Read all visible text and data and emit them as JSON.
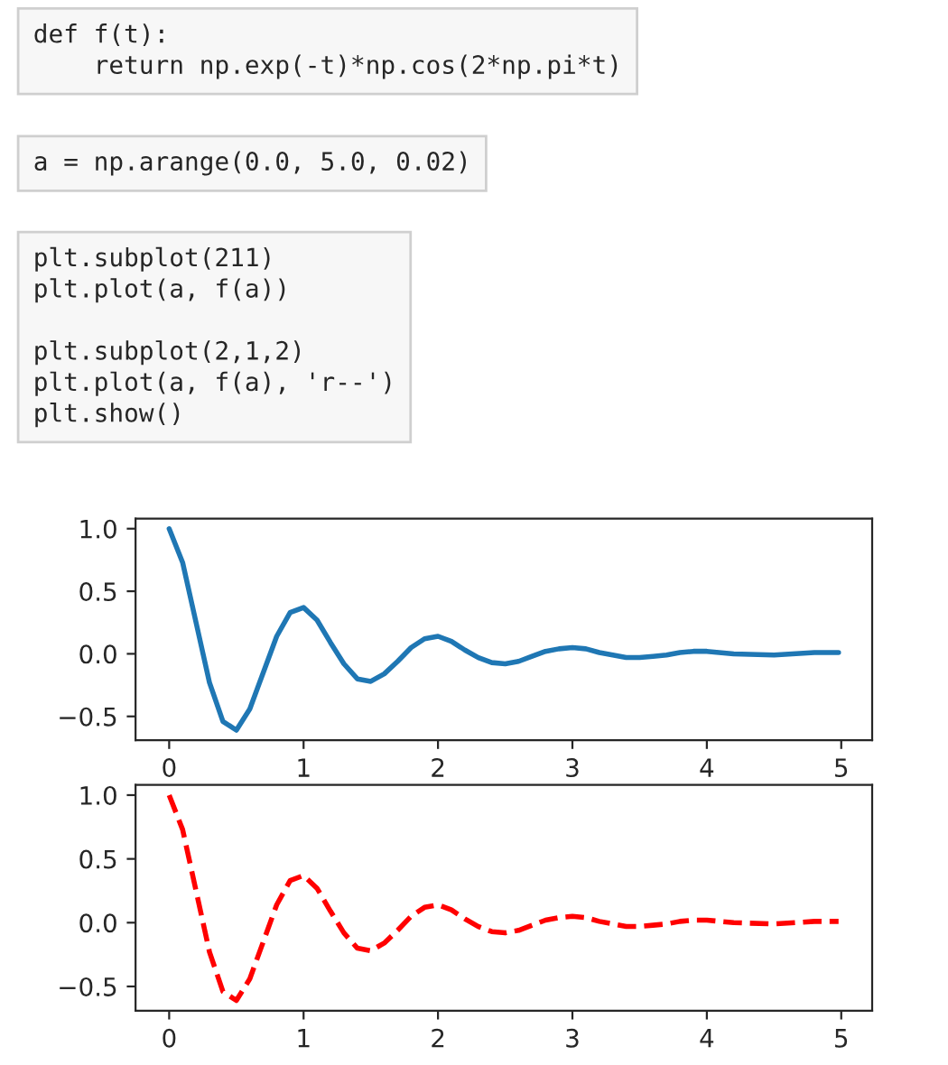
{
  "chart_data": [
    {
      "type": "line",
      "annotations": [
        "def f(t):\n    return np.exp(-t)*np.cos(2*np.pi*t)",
        "a = np.arange(0.0, 5.0, 0.02)",
        "plt.subplot(211)\nplt.plot(a, f(a))\n\nplt.subplot(2,1,2)\nplt.plot(a, f(a), 'r--')\nplt.show()"
      ],
      "x": [
        0,
        0.1,
        0.2,
        0.3,
        0.4,
        0.5,
        0.6,
        0.7,
        0.8,
        0.9,
        1.0,
        1.1,
        1.2,
        1.3,
        1.4,
        1.5,
        1.6,
        1.7,
        1.8,
        1.9,
        2.0,
        2.1,
        2.2,
        2.3,
        2.4,
        2.5,
        2.6,
        2.7,
        2.8,
        2.9,
        3.0,
        3.1,
        3.2,
        3.3,
        3.4,
        3.5,
        3.6,
        3.7,
        3.8,
        3.9,
        4.0,
        4.2,
        4.5,
        4.8,
        4.98
      ],
      "series": [
        {
          "color": "#1f77b4",
          "line_style": "solid",
          "values": [
            1.0,
            0.73,
            0.25,
            -0.23,
            -0.54,
            -0.61,
            -0.44,
            -0.15,
            0.14,
            0.33,
            0.37,
            0.27,
            0.09,
            -0.08,
            -0.2,
            -0.22,
            -0.16,
            -0.06,
            0.05,
            0.12,
            0.14,
            0.1,
            0.03,
            -0.03,
            -0.07,
            -0.08,
            -0.06,
            -0.02,
            0.02,
            0.04,
            0.05,
            0.04,
            0.01,
            -0.01,
            -0.03,
            -0.03,
            -0.02,
            -0.01,
            0.01,
            0.02,
            0.02,
            0.0,
            -0.01,
            0.01,
            0.01
          ]
        }
      ],
      "xlim": [
        -0.25,
        5.23
      ],
      "ylim": [
        -0.69,
        1.08
      ],
      "xticks": [
        0,
        1,
        2,
        3,
        4,
        5
      ],
      "yticks": [
        {
          "value": -0.5,
          "label": "−0.5"
        },
        {
          "value": 0,
          "label": "0.0"
        },
        {
          "value": 0.5,
          "label": "0.5"
        },
        {
          "value": 1.0,
          "label": "1.0"
        }
      ],
      "grid": false,
      "legend": false
    },
    {
      "type": "line",
      "x": [
        0,
        0.1,
        0.2,
        0.3,
        0.4,
        0.5,
        0.6,
        0.7,
        0.8,
        0.9,
        1.0,
        1.1,
        1.2,
        1.3,
        1.4,
        1.5,
        1.6,
        1.7,
        1.8,
        1.9,
        2.0,
        2.1,
        2.2,
        2.3,
        2.4,
        2.5,
        2.6,
        2.7,
        2.8,
        2.9,
        3.0,
        3.1,
        3.2,
        3.3,
        3.4,
        3.5,
        3.6,
        3.7,
        3.8,
        3.9,
        4.0,
        4.2,
        4.5,
        4.8,
        4.98
      ],
      "series": [
        {
          "color": "#ff0000",
          "line_style": "dashed",
          "values": [
            1.0,
            0.73,
            0.25,
            -0.23,
            -0.54,
            -0.61,
            -0.44,
            -0.15,
            0.14,
            0.33,
            0.37,
            0.27,
            0.09,
            -0.08,
            -0.2,
            -0.22,
            -0.16,
            -0.06,
            0.05,
            0.12,
            0.14,
            0.1,
            0.03,
            -0.03,
            -0.07,
            -0.08,
            -0.06,
            -0.02,
            0.02,
            0.04,
            0.05,
            0.04,
            0.01,
            -0.01,
            -0.03,
            -0.03,
            -0.02,
            -0.01,
            0.01,
            0.02,
            0.02,
            0.0,
            -0.01,
            0.01,
            0.01
          ]
        }
      ],
      "xlim": [
        -0.25,
        5.23
      ],
      "ylim": [
        -0.69,
        1.08
      ],
      "xticks": [
        0,
        1,
        2,
        3,
        4,
        5
      ],
      "yticks": [
        {
          "value": -0.5,
          "label": "−0.5"
        },
        {
          "value": 0,
          "label": "0.0"
        },
        {
          "value": 0.5,
          "label": "0.5"
        },
        {
          "value": 1.0,
          "label": "1.0"
        }
      ],
      "grid": false,
      "legend": false
    }
  ]
}
